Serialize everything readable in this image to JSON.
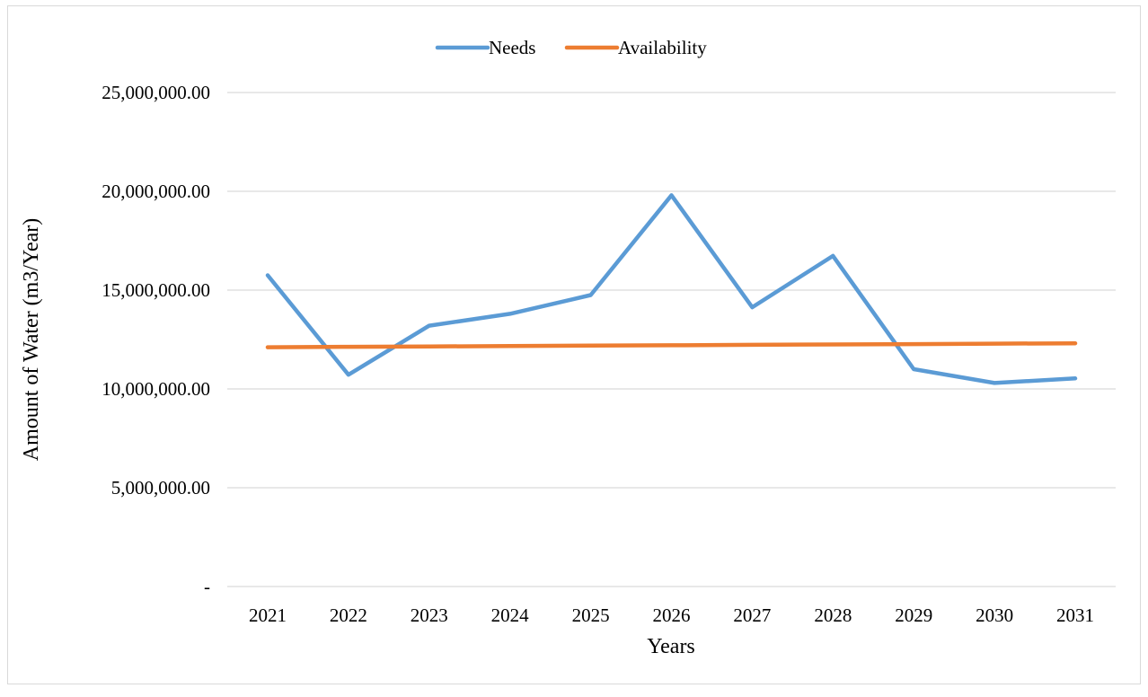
{
  "chart_data": {
    "type": "line",
    "xlabel": "Years",
    "ylabel": "Amount of Water (m3/Year)",
    "categories": [
      "2021",
      "2022",
      "2023",
      "2024",
      "2025",
      "2026",
      "2027",
      "2028",
      "2029",
      "2030",
      "2031"
    ],
    "ylim": [
      0,
      25000000
    ],
    "yticks": [
      {
        "value": 0,
        "label": "-"
      },
      {
        "value": 5000000,
        "label": "5,000,000.00"
      },
      {
        "value": 10000000,
        "label": "10,000,000.00"
      },
      {
        "value": 15000000,
        "label": "15,000,000.00"
      },
      {
        "value": 20000000,
        "label": "20,000,000.00"
      },
      {
        "value": 25000000,
        "label": "25,000,000.00"
      }
    ],
    "grid": "horizontal",
    "legend_position": "top",
    "series": [
      {
        "name": "Needs",
        "color": "#5b9bd5",
        "values": [
          15750000,
          10720000,
          13200000,
          13800000,
          14750000,
          19800000,
          14130000,
          16730000,
          11000000,
          10300000,
          10530000
        ]
      },
      {
        "name": "Availability",
        "color": "#ed7d31",
        "values": [
          12110000,
          12130000,
          12150000,
          12170000,
          12190000,
          12210000,
          12230000,
          12250000,
          12270000,
          12290000,
          12310000
        ]
      }
    ]
  }
}
